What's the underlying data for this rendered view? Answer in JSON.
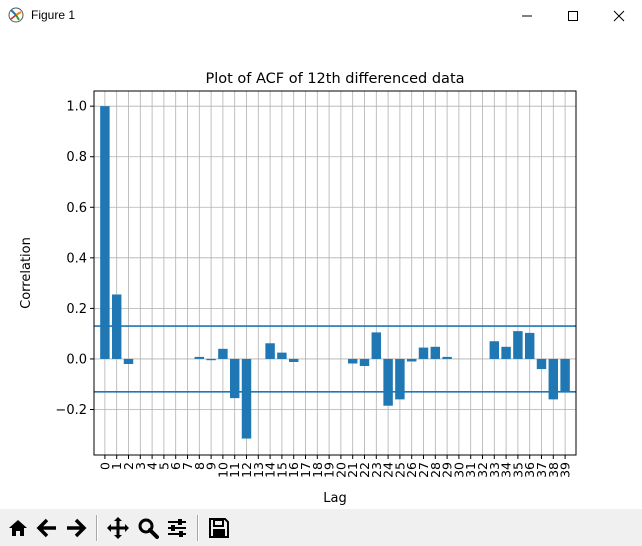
{
  "window": {
    "title": "Figure 1",
    "icon": "matplotlib-icon"
  },
  "controls": {
    "minimize": "minimize-icon",
    "maximize": "maximize-icon",
    "close": "close-icon"
  },
  "toolbar": {
    "buttons": [
      "home-icon",
      "back-arrow-icon",
      "forward-arrow-icon",
      "pan-icon",
      "zoom-icon",
      "configure-subplots-icon",
      "save-icon"
    ]
  },
  "colors": {
    "bar": "#1f77b4",
    "grid": "#b0b0b0"
  },
  "chart_data": {
    "type": "bar",
    "title": "Plot of ACF of 12th differenced data",
    "xlabel": "Lag",
    "ylabel": "Correlation",
    "categories": [
      "0",
      "1",
      "2",
      "3",
      "4",
      "5",
      "6",
      "7",
      "8",
      "9",
      "10",
      "11",
      "12",
      "13",
      "14",
      "15",
      "16",
      "17",
      "18",
      "19",
      "20",
      "21",
      "22",
      "23",
      "24",
      "25",
      "26",
      "27",
      "28",
      "29",
      "30",
      "31",
      "32",
      "33",
      "34",
      "35",
      "36",
      "37",
      "38",
      "39"
    ],
    "values": [
      1.0,
      0.255,
      -0.02,
      0,
      0,
      0,
      0,
      0,
      0.008,
      -0.005,
      0.04,
      -0.155,
      -0.315,
      0,
      0.062,
      0.025,
      -0.012,
      0,
      0,
      0,
      0,
      -0.018,
      -0.028,
      0.105,
      -0.185,
      -0.16,
      -0.01,
      0.045,
      0.048,
      0.008,
      0,
      0,
      0,
      0.07,
      0.048,
      0.11,
      0.103,
      -0.04,
      -0.16,
      -0.13
    ],
    "reference_lines": [
      0.13,
      -0.13
    ],
    "ylim": [
      -0.38,
      1.06
    ],
    "yticks": [
      "1.0",
      "0.8",
      "0.6",
      "0.4",
      "0.2",
      "0.0",
      "−0.2"
    ],
    "ytick_values": [
      1.0,
      0.8,
      0.6,
      0.4,
      0.2,
      0.0,
      -0.2
    ],
    "grid": true,
    "xtick_rotation": "vertical"
  }
}
